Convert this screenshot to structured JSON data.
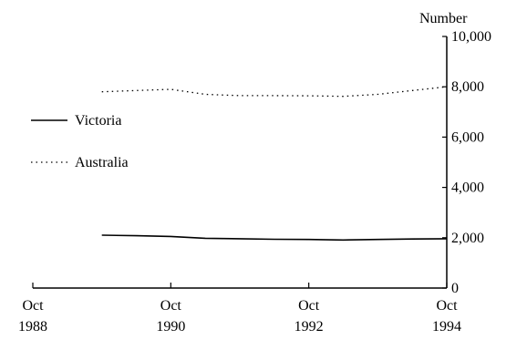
{
  "chart_data": {
    "type": "line",
    "y_axis_title": "Number",
    "y_axis_side": "right",
    "ylim": [
      0,
      10000
    ],
    "yticks": [
      {
        "value": 0,
        "label": "0"
      },
      {
        "value": 2000,
        "label": "2,000"
      },
      {
        "value": 4000,
        "label": "4,000"
      },
      {
        "value": 6000,
        "label": "6,000"
      },
      {
        "value": 8000,
        "label": "8,000"
      },
      {
        "value": 10000,
        "label": "10,000"
      }
    ],
    "xlim": [
      1988.75,
      1994.75
    ],
    "xticks": [
      {
        "value": 1988.75,
        "month": "Oct",
        "year": "1988"
      },
      {
        "value": 1990.75,
        "month": "Oct",
        "year": "1990"
      },
      {
        "value": 1992.75,
        "month": "Oct",
        "year": "1992"
      },
      {
        "value": 1994.75,
        "month": "Oct",
        "year": "1994"
      }
    ],
    "grid": false,
    "legend_position": "middle-left",
    "series": [
      {
        "name": "Victoria",
        "style": "solid",
        "color": "#000000",
        "x": [
          1989.75,
          1990.25,
          1990.75,
          1991.25,
          1991.75,
          1992.25,
          1992.75,
          1993.25,
          1993.75,
          1994.25,
          1994.75
        ],
        "y": [
          2100,
          2080,
          2050,
          1980,
          1960,
          1940,
          1930,
          1910,
          1930,
          1950,
          1960
        ]
      },
      {
        "name": "Australia",
        "style": "dotted",
        "color": "#000000",
        "x": [
          1989.75,
          1990.25,
          1990.75,
          1991.25,
          1991.75,
          1992.25,
          1992.75,
          1993.25,
          1993.75,
          1994.25,
          1994.75
        ],
        "y": [
          7800,
          7850,
          7900,
          7700,
          7650,
          7650,
          7640,
          7620,
          7700,
          7850,
          8000
        ]
      }
    ]
  }
}
